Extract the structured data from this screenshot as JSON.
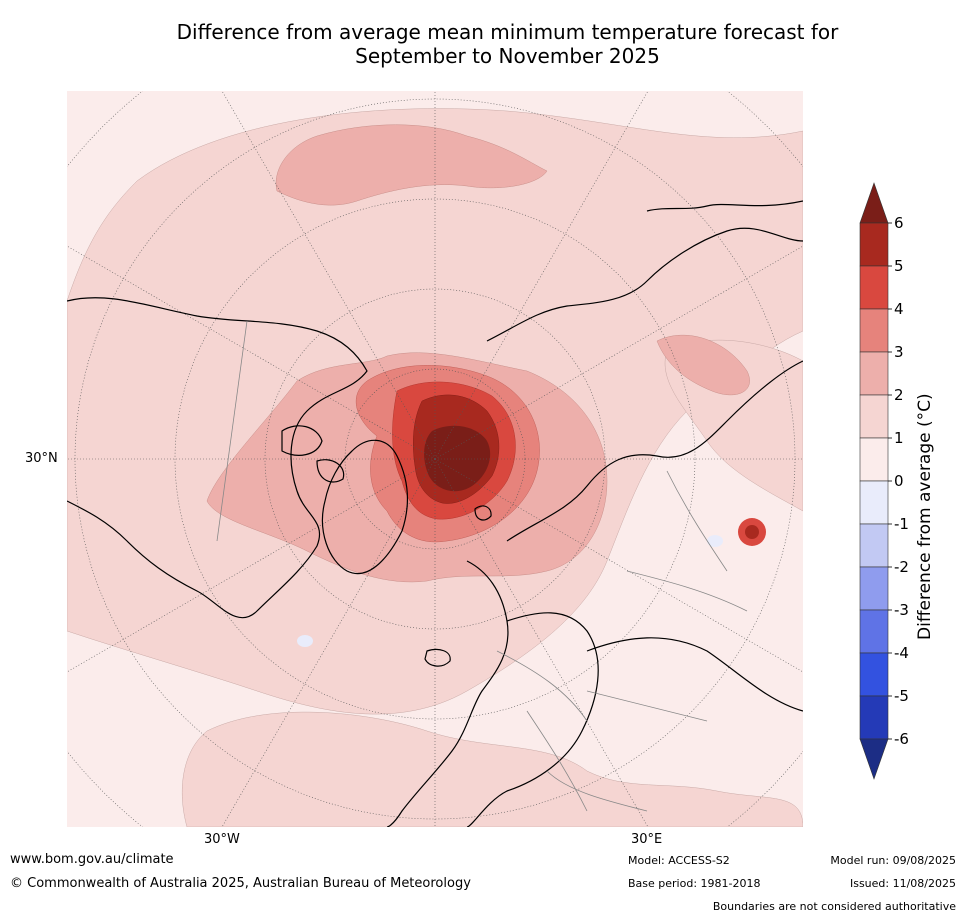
{
  "title": {
    "line1": "Difference from average mean minimum temperature forecast for",
    "line2": "September to November 2025"
  },
  "map": {
    "projection": "north polar stereographic",
    "lat_labels": [
      "30°N"
    ],
    "lon_labels": [
      "30°W",
      "30°E"
    ]
  },
  "colorbar": {
    "label": "Difference from average (°C)",
    "ticks": [
      "6",
      "5",
      "4",
      "3",
      "2",
      "1",
      "0",
      "-1",
      "-2",
      "-3",
      "-4",
      "-5",
      "-6"
    ],
    "colors": {
      "above6": "#7a1e18",
      "5to6": "#a8291f",
      "4to5": "#d9483f",
      "3to4": "#e6837c",
      "2to3": "#edafab",
      "1to2": "#f5d5d2",
      "0to1": "#fbeceb",
      "m1to0": "#e9ecfb",
      "m2tom1": "#c2c9f3",
      "m3tom2": "#8f9cee",
      "m4tom3": "#5f73e6",
      "m5tom4": "#3352e0",
      "m6tom5": "#243ab7",
      "belowm6": "#1c2d85"
    }
  },
  "footer": {
    "website": "www.bom.gov.au/climate",
    "copyright": "© Commonwealth of Australia 2025, Australian Bureau of Meteorology",
    "model": "Model: ACCESS-S2",
    "base_period": "Base period: 1981-2018",
    "model_run": "Model run: 09/08/2025",
    "issued": "Issued: 11/08/2025",
    "disclaimer": "Boundaries are not considered authoritative"
  }
}
